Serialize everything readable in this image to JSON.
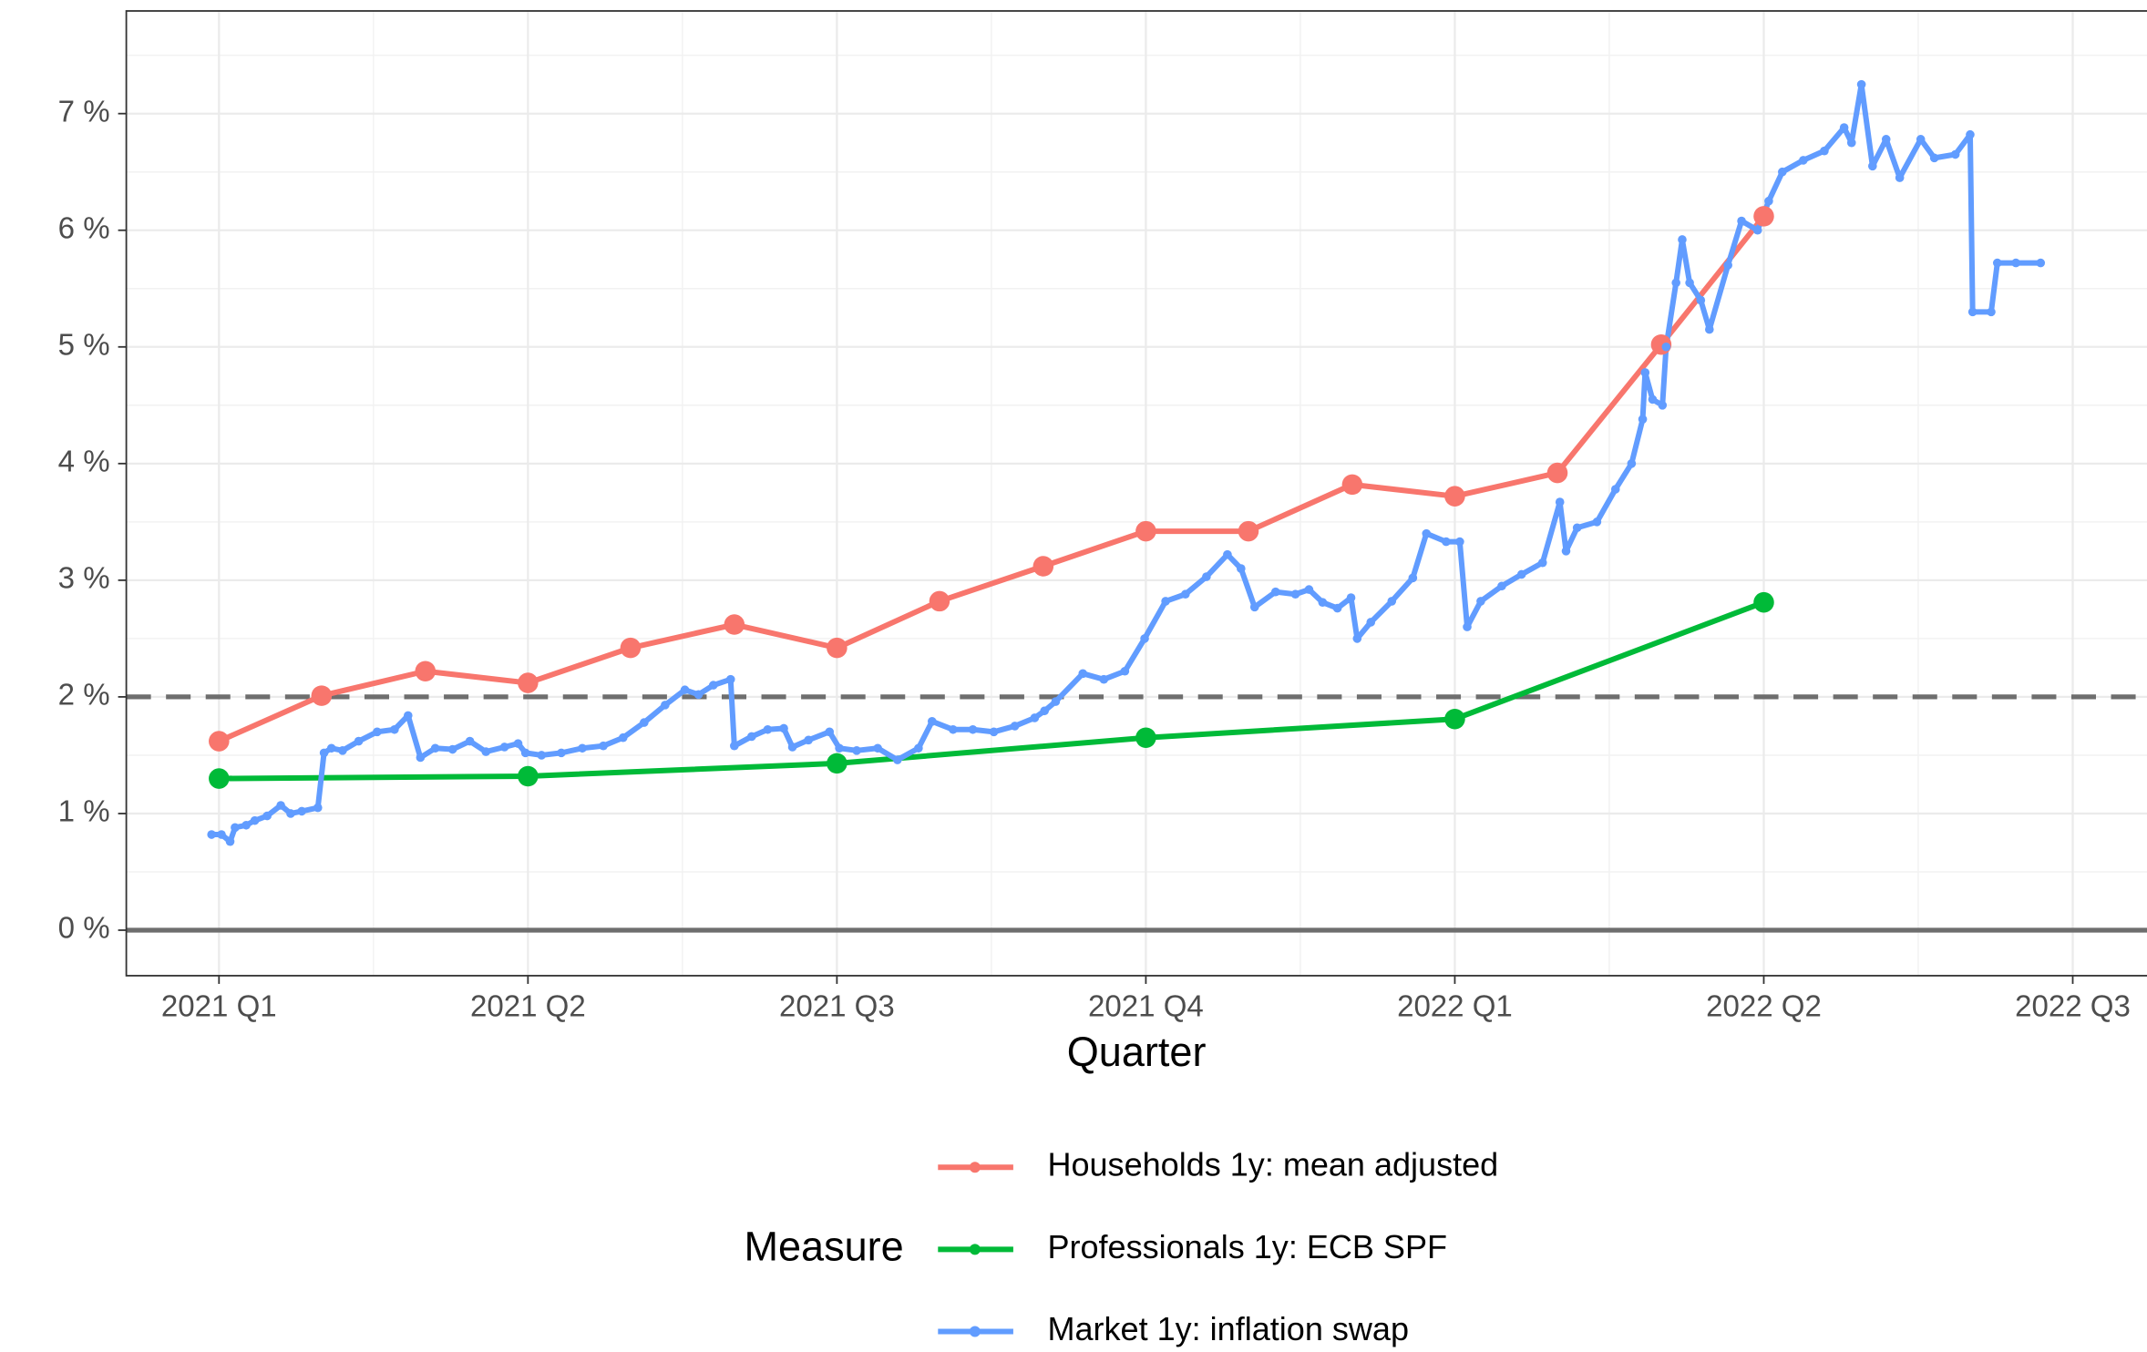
{
  "chart_data": {
    "type": "line",
    "x_label": "Quarter",
    "legend_title": "Measure",
    "legend_position": "bottom",
    "grid": true,
    "xlim": [
      2020.925,
      2022.562
    ],
    "ylim": [
      -0.39,
      7.88
    ],
    "xticks": [
      {
        "value": 2021,
        "label": "2021 Q1"
      },
      {
        "value": 2021.25,
        "label": "2021 Q2"
      },
      {
        "value": 2021.5,
        "label": "2021 Q3"
      },
      {
        "value": 2021.75,
        "label": "2021 Q4"
      },
      {
        "value": 2022,
        "label": "2022 Q1"
      },
      {
        "value": 2022.25,
        "label": "2022 Q2"
      },
      {
        "value": 2022.5,
        "label": "2022 Q3"
      }
    ],
    "yticks": [
      {
        "value": 0,
        "label": "0 %"
      },
      {
        "value": 1,
        "label": "1 %"
      },
      {
        "value": 2,
        "label": "2 %"
      },
      {
        "value": 3,
        "label": "3 %"
      },
      {
        "value": 4,
        "label": "4 %"
      },
      {
        "value": 5,
        "label": "5 %"
      },
      {
        "value": 6,
        "label": "6 %"
      },
      {
        "value": 7,
        "label": "7 %"
      }
    ],
    "reference_lines": [
      {
        "value": 2,
        "style": "dashed"
      },
      {
        "value": 0,
        "style": "solid"
      }
    ],
    "series": [
      {
        "name": "Households 1y: mean adjusted",
        "color": "#F8766D",
        "marker": "large",
        "x": [
          2021,
          2021.083,
          2021.167,
          2021.25,
          2021.333,
          2021.417,
          2021.5,
          2021.583,
          2021.667,
          2021.75,
          2021.833,
          2021.917,
          2022,
          2022.083,
          2022.167,
          2022.25
        ],
        "values": [
          1.62,
          2.01,
          2.22,
          2.12,
          2.42,
          2.62,
          2.42,
          2.82,
          3.12,
          3.42,
          3.42,
          3.82,
          3.72,
          3.92,
          5.02,
          6.12
        ]
      },
      {
        "name": "Professionals 1y: ECB SPF",
        "color": "#00BA38",
        "marker": "large",
        "x": [
          2021,
          2021.25,
          2021.5,
          2021.75,
          2022,
          2022.25
        ],
        "values": [
          1.3,
          1.32,
          1.43,
          1.65,
          1.81,
          2.81
        ]
      },
      {
        "name": "Market 1y: inflation swap",
        "color": "#619CFF",
        "marker": "small",
        "x": [
          2020.994,
          2021.002,
          2021.009,
          2021.013,
          2021.022,
          2021.029,
          2021.039,
          2021.05,
          2021.058,
          2021.067,
          2021.08,
          2021.085,
          2021.091,
          2021.1,
          2021.113,
          2021.128,
          2021.142,
          2021.153,
          2021.163,
          2021.175,
          2021.189,
          2021.203,
          2021.216,
          2021.231,
          2021.242,
          2021.248,
          2021.261,
          2021.277,
          2021.294,
          2021.311,
          2021.327,
          2021.344,
          2021.361,
          2021.377,
          2021.388,
          2021.4,
          2021.414,
          2021.417,
          2021.431,
          2021.444,
          2021.457,
          2021.464,
          2021.477,
          2021.494,
          2021.502,
          2021.516,
          2021.533,
          2021.549,
          2021.566,
          2021.577,
          2021.594,
          2021.61,
          2021.627,
          2021.644,
          2021.66,
          2021.668,
          2021.677,
          2021.699,
          2021.716,
          2021.733,
          2021.749,
          2021.766,
          2021.782,
          2021.799,
          2021.816,
          2021.827,
          2021.838,
          2021.855,
          2021.871,
          2021.882,
          2021.893,
          2021.905,
          2021.916,
          2021.921,
          2021.932,
          2021.949,
          2021.966,
          2021.977,
          2021.993,
          2022.004,
          2022.01,
          2022.021,
          2022.038,
          2022.054,
          2022.071,
          2022.085,
          2022.09,
          2022.099,
          2022.115,
          2022.13,
          2022.143,
          2022.152,
          2022.154,
          2022.16,
          2022.168,
          2022.171,
          2022.179,
          2022.184,
          2022.19,
          2022.199,
          2022.206,
          2022.221,
          2022.232,
          2022.245,
          2022.254,
          2022.265,
          2022.282,
          2022.299,
          2022.315,
          2022.321,
          2022.329,
          2022.338,
          2022.349,
          2022.36,
          2022.377,
          2022.388,
          2022.405,
          2022.417,
          2022.419,
          2022.434,
          2022.439,
          2022.454,
          2022.474
        ],
        "values": [
          0.82,
          0.82,
          0.76,
          0.88,
          0.9,
          0.94,
          0.98,
          1.07,
          1.0,
          1.02,
          1.05,
          1.52,
          1.56,
          1.54,
          1.62,
          1.7,
          1.72,
          1.84,
          1.48,
          1.56,
          1.55,
          1.62,
          1.53,
          1.57,
          1.6,
          1.52,
          1.5,
          1.52,
          1.56,
          1.58,
          1.65,
          1.78,
          1.93,
          2.06,
          2.02,
          2.1,
          2.15,
          1.58,
          1.66,
          1.72,
          1.73,
          1.57,
          1.63,
          1.7,
          1.56,
          1.54,
          1.56,
          1.46,
          1.56,
          1.79,
          1.72,
          1.72,
          1.7,
          1.75,
          1.82,
          1.88,
          1.96,
          2.2,
          2.15,
          2.22,
          2.5,
          2.82,
          2.88,
          3.03,
          3.22,
          3.1,
          2.77,
          2.9,
          2.88,
          2.92,
          2.81,
          2.76,
          2.85,
          2.5,
          2.64,
          2.82,
          3.02,
          3.4,
          3.33,
          3.33,
          2.6,
          2.82,
          2.95,
          3.05,
          3.15,
          3.67,
          3.25,
          3.45,
          3.5,
          3.78,
          4.0,
          4.38,
          4.78,
          4.55,
          4.5,
          5.0,
          5.55,
          5.92,
          5.55,
          5.4,
          5.15,
          5.7,
          6.08,
          6.0,
          6.25,
          6.5,
          6.6,
          6.68,
          6.88,
          6.75,
          7.25,
          6.55,
          6.78,
          6.45,
          6.78,
          6.62,
          6.65,
          6.82,
          5.3,
          5.3,
          5.72,
          5.72,
          5.72
        ]
      }
    ]
  }
}
